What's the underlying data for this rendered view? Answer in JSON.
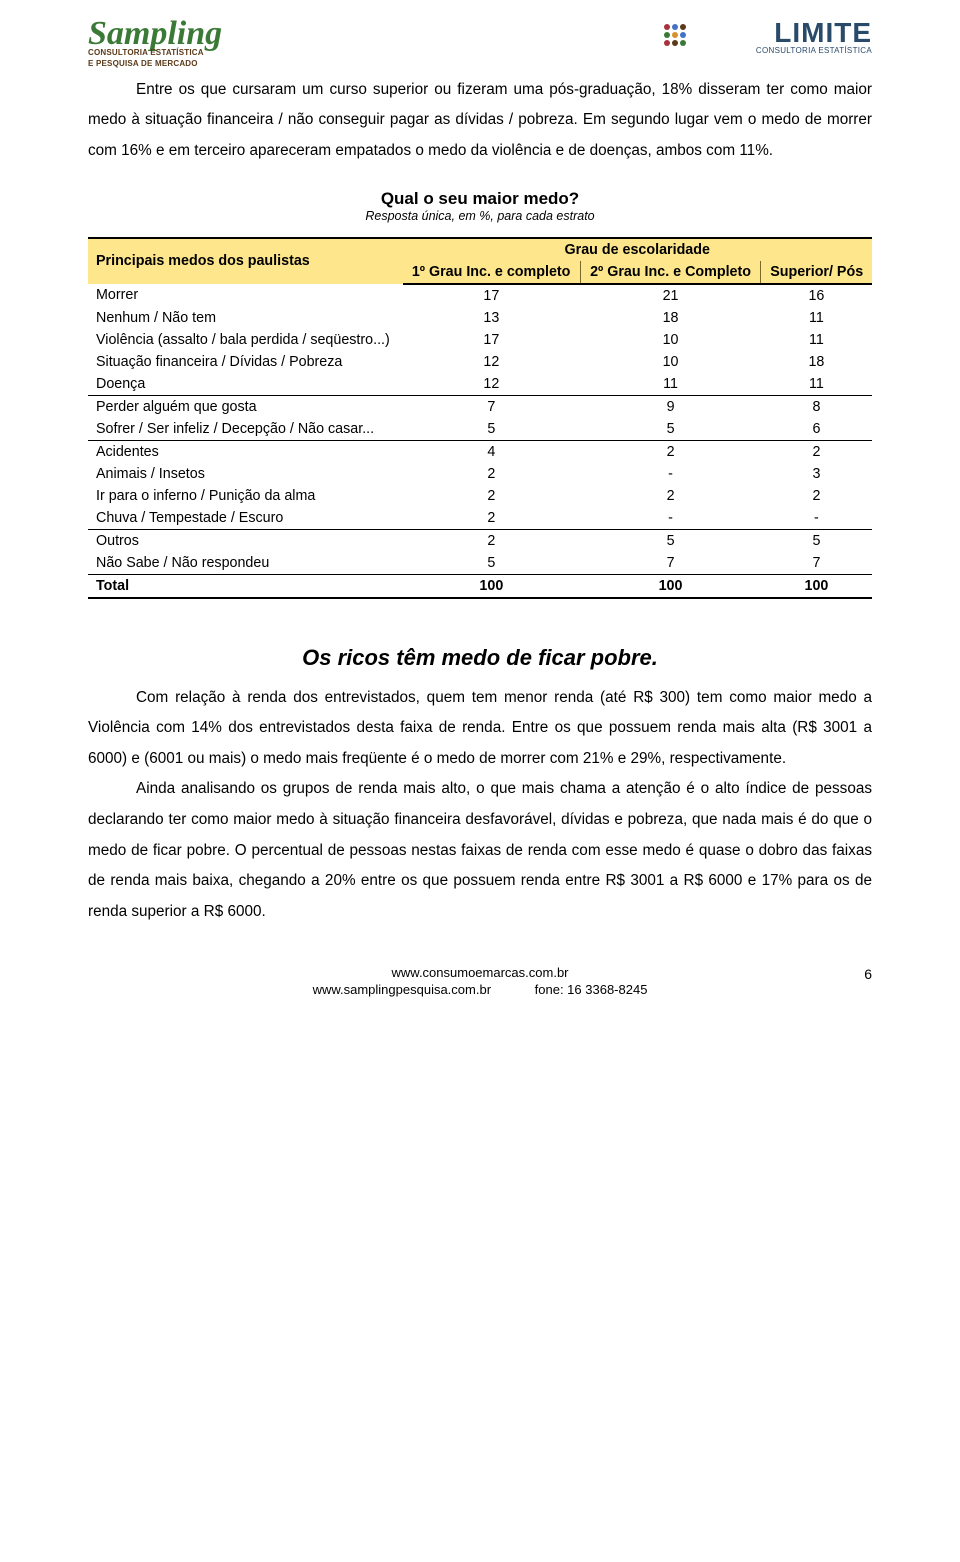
{
  "logos": {
    "left_brand": "Sampling",
    "left_sub1": "CONSULTORIA ESTATÍSTICA",
    "left_sub2": "E PESQUISA DE MERCADO",
    "right_brand": "LIMITE",
    "right_sub": "CONSULTORIA ESTATÍSTICA"
  },
  "paragraphs": {
    "p1": "Entre os que cursaram um curso superior ou fizeram uma pós-graduação, 18% disseram ter como maior medo à situação financeira / não conseguir pagar as dívidas / pobreza. Em segundo lugar vem o medo de morrer com 16% e em terceiro apareceram empatados o medo da violência e de doenças, ambos com 11%."
  },
  "table1": {
    "title": "Qual o seu maior medo?",
    "subtitle": "Resposta única, em %, para cada estrato",
    "row_header": "Principais medos dos paulistas",
    "col_group": "Grau de escolaridade",
    "columns": [
      "1º Grau Inc. e completo",
      "2º Grau Inc. e Completo",
      "Superior/ Pós"
    ],
    "header_bg": "#fee68c",
    "border_color": "#000000",
    "rows": [
      {
        "label": "Morrer",
        "v": [
          "17",
          "21",
          "16"
        ]
      },
      {
        "label": "Nenhum / Não tem",
        "v": [
          "13",
          "18",
          "11"
        ]
      },
      {
        "label": "Violência (assalto / bala perdida / seqüestro...)",
        "v": [
          "17",
          "10",
          "11"
        ]
      },
      {
        "label": "Situação financeira / Dívidas / Pobreza",
        "v": [
          "12",
          "10",
          "18"
        ]
      },
      {
        "label": "Doença",
        "v": [
          "12",
          "11",
          "11"
        ]
      },
      {
        "label": "Perder alguém que gosta",
        "v": [
          "7",
          "9",
          "8"
        ],
        "sep": true
      },
      {
        "label": "Sofrer / Ser infeliz / Decepção / Não casar...",
        "v": [
          "5",
          "5",
          "6"
        ]
      },
      {
        "label": "Acidentes",
        "v": [
          "4",
          "2",
          "2"
        ],
        "sep": true
      },
      {
        "label": "Animais / Insetos",
        "v": [
          "2",
          "-",
          "3"
        ]
      },
      {
        "label": "Ir para o inferno / Punição da alma",
        "v": [
          "2",
          "2",
          "2"
        ]
      },
      {
        "label": "Chuva / Tempestade / Escuro",
        "v": [
          "2",
          "-",
          "-"
        ]
      },
      {
        "label": "Outros",
        "v": [
          "2",
          "5",
          "5"
        ],
        "sep": true
      },
      {
        "label": "Não Sabe / Não respondeu",
        "v": [
          "5",
          "7",
          "7"
        ]
      }
    ],
    "total": {
      "label": "Total",
      "v": [
        "100",
        "100",
        "100"
      ]
    }
  },
  "section2": {
    "title": "Os ricos têm medo de ficar pobre.",
    "p1": "Com relação à renda dos entrevistados, quem tem menor renda (até R$ 300) tem como maior medo a Violência com 14% dos entrevistados desta faixa de renda. Entre os que possuem renda mais alta (R$ 3001 a 6000) e (6001 ou mais) o medo mais freqüente é o medo de morrer com 21% e 29%, respectivamente.",
    "p2": "Ainda analisando os grupos de renda mais alto, o que mais chama a atenção é o alto índice de pessoas declarando ter como maior medo à situação financeira desfavorável, dívidas e pobreza, que nada mais é do que o medo de ficar pobre. O percentual de pessoas nestas faixas de renda com esse medo é quase o dobro das faixas de renda mais baixa, chegando a 20% entre os que possuem renda entre R$ 3001 a R$ 6000 e 17% para os de renda superior a R$ 6000."
  },
  "footer": {
    "url1": "www.consumoemarcas.com.br",
    "url2": "www.samplingpesquisa.com.br",
    "phone": "fone: 16 3368-8245",
    "page": "6"
  }
}
